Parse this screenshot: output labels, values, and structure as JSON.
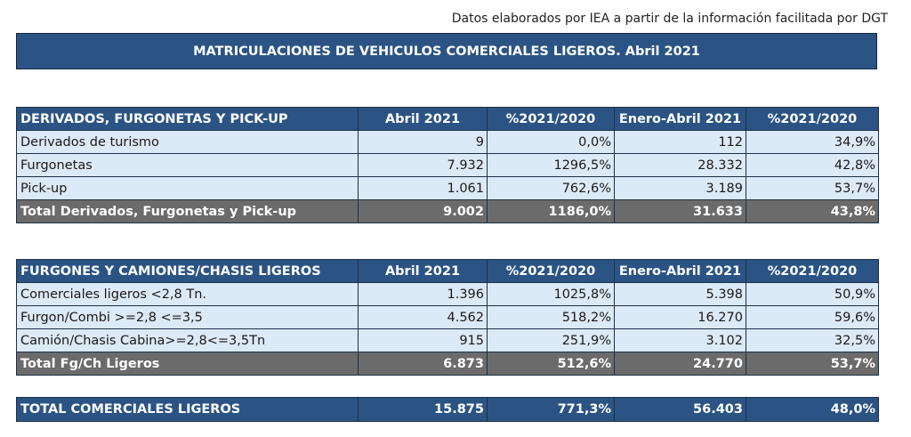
{
  "source_note": "Datos elaborados por IEA a partir de la información facilitada por DGT",
  "banner_title": "MATRICULACIONES DE VEHICULOS COMERCIALES LIGEROS. Abril 2021",
  "table1": {
    "headers": [
      "DERIVADOS, FURGONETAS Y PICK-UP",
      "Abril 2021",
      "%2021/2020",
      "Enero-Abril 2021",
      "%2021/2020"
    ],
    "rows": [
      [
        "Derivados de turismo",
        "9",
        "0,0%",
        "112",
        "34,9%"
      ],
      [
        "Furgonetas",
        "7.932",
        "1296,5%",
        "28.332",
        "42,8%"
      ],
      [
        "Pick-up",
        "1.061",
        "762,6%",
        "3.189",
        "53,7%"
      ]
    ],
    "total": [
      "Total Derivados, Furgonetas y Pick-up",
      "9.002",
      "1186,0%",
      "31.633",
      "43,8%"
    ]
  },
  "table2": {
    "headers": [
      "FURGONES Y CAMIONES/CHASIS LIGEROS",
      "Abril 2021",
      "%2021/2020",
      "Enero-Abril 2021",
      "%2021/2020"
    ],
    "rows": [
      [
        "Comerciales ligeros <2,8 Tn.",
        "1.396",
        "1025,8%",
        "5.398",
        "50,9%"
      ],
      [
        "Furgon/Combi >=2,8 <=3,5",
        "4.562",
        "518,2%",
        "16.270",
        "59,6%"
      ],
      [
        "Camión/Chasis Cabina>=2,8<=3,5Tn",
        "915",
        "251,9%",
        "3.102",
        "32,5%"
      ]
    ],
    "total": [
      "Total Fg/Ch Ligeros",
      "6.873",
      "512,6%",
      "24.770",
      "53,7%"
    ]
  },
  "grand_total": [
    "TOTAL COMERCIALES LIGEROS",
    "15.875",
    "771,3%",
    "56.403",
    "48,0%"
  ]
}
